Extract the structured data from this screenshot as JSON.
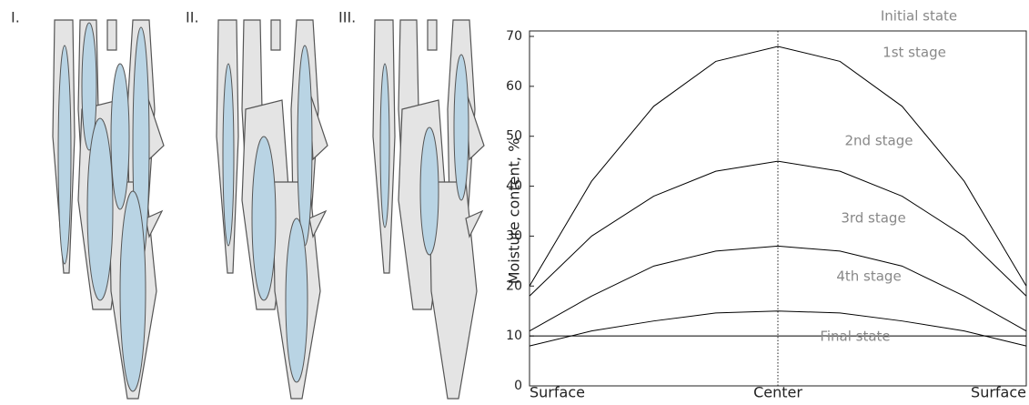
{
  "panels": [
    "I.",
    "II.",
    "III."
  ],
  "chart_data": {
    "type": "line",
    "y_label": "Moisture content, %",
    "categories": [
      "Surface",
      null,
      null,
      null,
      "Center",
      null,
      null,
      null,
      "Surface"
    ],
    "series": [
      {
        "name": "1st stage",
        "color": "#000000",
        "values": [
          20,
          41,
          56,
          65,
          68,
          65,
          56,
          41,
          20
        ]
      },
      {
        "name": "2nd stage",
        "color": "#000000",
        "values": [
          18,
          30,
          38,
          43,
          45,
          43,
          38,
          30,
          18
        ]
      },
      {
        "name": "3rd stage",
        "color": "#000000",
        "values": [
          11,
          18,
          24,
          27,
          28,
          27,
          24,
          18,
          11
        ]
      },
      {
        "name": "4th stage",
        "color": "#000000",
        "values": [
          8,
          11,
          13,
          14.6,
          15,
          14.6,
          13,
          11,
          8
        ]
      },
      {
        "name": "Final state",
        "color": "#000000",
        "values": [
          10,
          10,
          10,
          10,
          10,
          10,
          10,
          10,
          10
        ]
      }
    ],
    "annotations": [
      "Initial state",
      "1st stage",
      "2nd stage",
      "3rd stage",
      "4th stage",
      "Final state"
    ],
    "ylim": [
      0,
      70
    ],
    "yticks": [
      0,
      10,
      20,
      30,
      40,
      50,
      60,
      70
    ]
  }
}
